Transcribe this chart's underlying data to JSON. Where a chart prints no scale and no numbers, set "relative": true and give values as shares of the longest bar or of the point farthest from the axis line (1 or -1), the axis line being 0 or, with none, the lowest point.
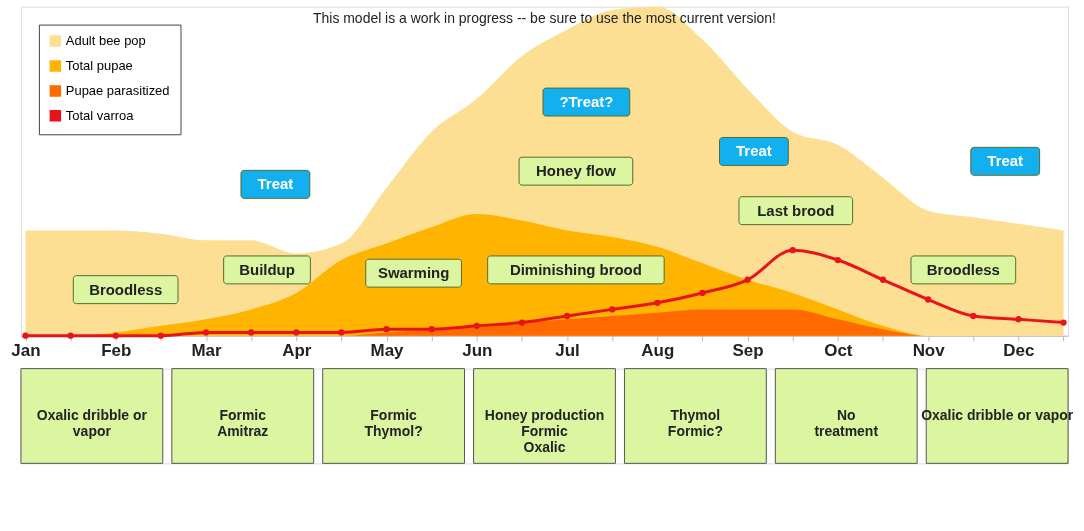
{
  "chart_data": {
    "type": "area",
    "relative": true,
    "tick_labels": "x",
    "legend": "top left",
    "categories": [
      "Jan",
      null,
      "Feb",
      null,
      "Mar",
      null,
      "Apr",
      null,
      "May",
      null,
      "Jun",
      null,
      "Jul",
      null,
      "Aug",
      null,
      "Sep",
      null,
      "Oct",
      null,
      "Nov",
      null,
      "Dec",
      null
    ],
    "series": [
      {
        "name": "Adult bee pop",
        "color": "#fddf94",
        "values": [
          0.32,
          0.32,
          0.32,
          0.31,
          0.29,
          0.29,
          0.25,
          0.28,
          0.45,
          0.62,
          0.72,
          0.85,
          0.93,
          0.99,
          1.0,
          0.9,
          0.75,
          0.62,
          0.58,
          0.48,
          0.38,
          0.36,
          0.34,
          0.32
        ]
      },
      {
        "name": "Total pupae",
        "color": "#ffb400",
        "values": [
          0.0,
          0.0,
          0.01,
          0.03,
          0.05,
          0.08,
          0.13,
          0.23,
          0.28,
          0.33,
          0.37,
          0.35,
          0.32,
          0.3,
          0.27,
          0.22,
          0.17,
          0.13,
          0.08,
          0.03,
          0.0,
          0.0,
          0.0,
          0.0
        ]
      },
      {
        "name": "Pupae parasitized",
        "color": "#ff6a00",
        "values": [
          0.0,
          0.0,
          0.0,
          0.0,
          0.0,
          0.0,
          0.0,
          0.0,
          0.01,
          0.02,
          0.03,
          0.04,
          0.05,
          0.06,
          0.07,
          0.08,
          0.08,
          0.08,
          0.05,
          0.02,
          0.0,
          0.0,
          0.0,
          0.0
        ]
      },
      {
        "name": "Total varroa",
        "color": "#e8141b",
        "type": "line",
        "marker": "circle",
        "values": [
          0.0,
          0.0,
          0.0,
          0.0,
          0.01,
          0.01,
          0.01,
          0.01,
          0.02,
          0.02,
          0.03,
          0.04,
          0.06,
          0.08,
          0.1,
          0.13,
          0.17,
          0.26,
          0.23,
          0.17,
          0.11,
          0.06,
          0.05,
          0.04
        ]
      }
    ],
    "annotations": [
      "This model is a work in progress -- be sure to use the most current version!",
      "Treat",
      "?Treat?",
      "Treat",
      "Treat",
      "Broodless",
      "Buildup",
      "Swarming",
      "Honey flow",
      "Diminishing brood",
      "Last brood",
      "Broodless",
      "Oxalic dribble or\nvapor",
      "Formic\nAmitraz",
      "Formic\nThymol?",
      "Honey production\nFormic\nOxalic",
      "Thymol\nFormic?",
      "No\ntreatment",
      "Oxalic dribble or vapor"
    ]
  }
}
